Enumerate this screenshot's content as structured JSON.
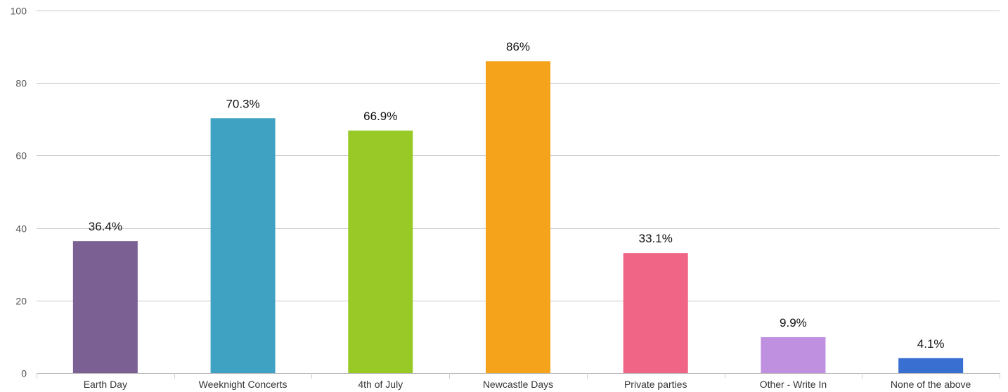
{
  "chart_data": {
    "type": "bar",
    "categories": [
      "Earth Day",
      "Weeknight Concerts",
      "4th of July",
      "Newcastle Days",
      "Private parties",
      "Other - Write In",
      "None of the above"
    ],
    "values": [
      36.4,
      70.3,
      66.9,
      86,
      33.1,
      9.9,
      4.1
    ],
    "data_labels": [
      "36.4%",
      "70.3%",
      "66.9%",
      "86%",
      "33.1%",
      "9.9%",
      "4.1%"
    ],
    "colors": [
      "#7b6193",
      "#40a2c3",
      "#98c927",
      "#f4a31a",
      "#f06585",
      "#bf8fe0",
      "#3a6fd2"
    ],
    "ylim": [
      0,
      100
    ],
    "yticks": [
      0,
      20,
      40,
      60,
      80,
      100
    ],
    "grid": true,
    "title": "",
    "xlabel": "",
    "ylabel": ""
  }
}
